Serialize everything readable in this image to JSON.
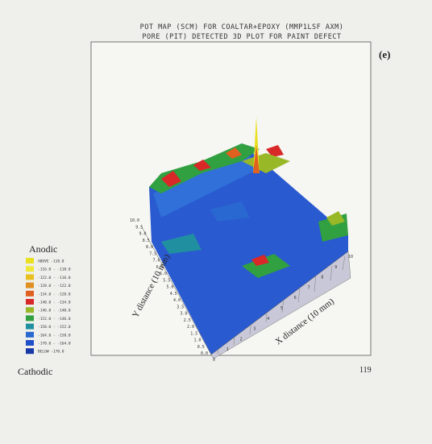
{
  "figure": {
    "title_lines": [
      "POT MAP (SCM) FOR COALTAR+EPOXY (MMP1LSF AXM)",
      "PORE (PIT) DETECTED 3D PLOT FOR PAINT DEFECT"
    ],
    "panel_label": "(e)",
    "y_axis_label": "Y distance (10 mm)",
    "x_axis_label": "X distance (10 mm)",
    "y_ticks": [
      "0.0",
      "0.5",
      "1.0",
      "1.5",
      "2.0",
      "2.5",
      "3.0",
      "3.5",
      "4.0",
      "4.5",
      "5.0",
      "5.5",
      "6.0",
      "6.5",
      "7.0",
      "7.5",
      "8.0",
      "8.5",
      "9.0",
      "9.5",
      "10.0"
    ],
    "x_ticks": [
      "0",
      "1",
      "2",
      "3",
      "4",
      "5",
      "6",
      "7",
      "8",
      "9",
      "10"
    ],
    "legend": {
      "title": "Anodic",
      "footer": "Cathodic",
      "entries": [
        {
          "label": "ABOVE -110.0",
          "color": "#e8e020"
        },
        {
          "label": "-116.0 - -110.0",
          "color": "#f0e838"
        },
        {
          "label": "-122.0 - -116.0",
          "color": "#e8c020"
        },
        {
          "label": "-128.0 - -122.0",
          "color": "#e09020"
        },
        {
          "label": "-134.0 - -128.0",
          "color": "#e06020"
        },
        {
          "label": "-140.0 - -134.0",
          "color": "#d82828"
        },
        {
          "label": "-146.0 - -140.0",
          "color": "#98b828"
        },
        {
          "label": "-152.0 - -146.0",
          "color": "#30a040"
        },
        {
          "label": "-158.0 - -152.0",
          "color": "#2090a0"
        },
        {
          "label": "-164.0 - -158.0",
          "color": "#2868d0"
        },
        {
          "label": "-170.0 - -164.0",
          "color": "#2050c8"
        },
        {
          "label": "BELOW -170.0",
          "color": "#1838a8"
        }
      ]
    },
    "page_number": "119"
  }
}
